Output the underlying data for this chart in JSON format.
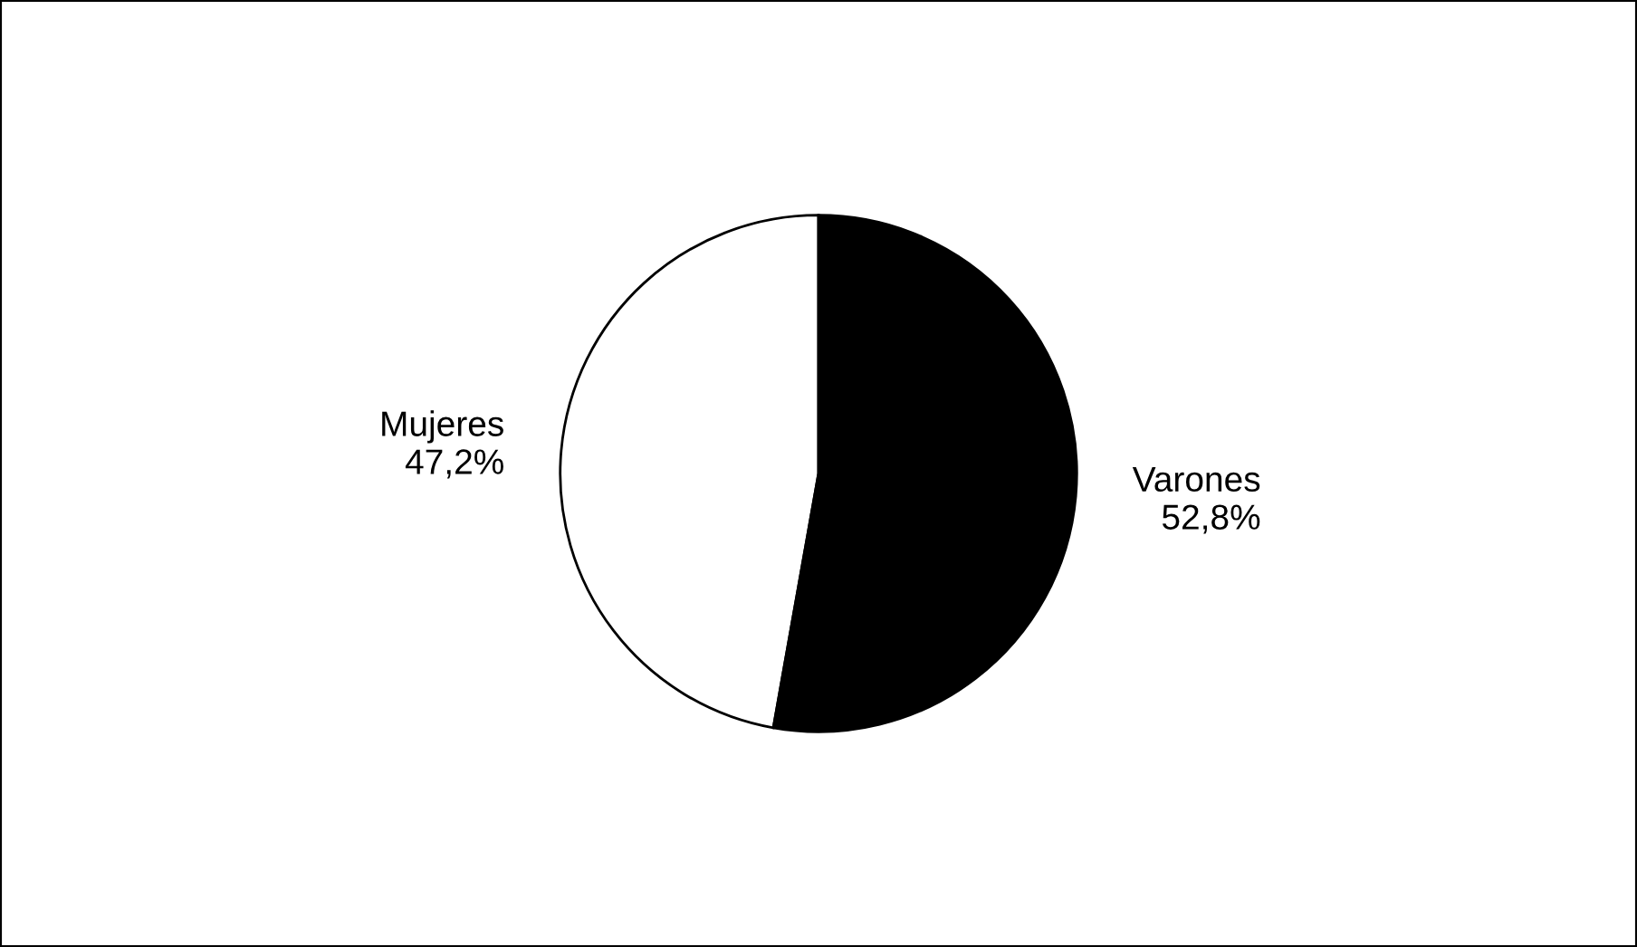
{
  "chart_data": {
    "type": "pie",
    "categories": [
      "Mujeres",
      "Varones"
    ],
    "values": [
      47.2,
      52.8
    ],
    "colors": [
      "#ffffff",
      "#000000"
    ],
    "value_labels": [
      "47,2%",
      "52,8%"
    ],
    "legend": false
  }
}
